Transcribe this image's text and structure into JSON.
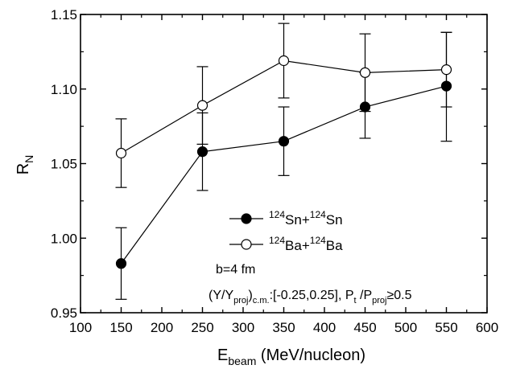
{
  "chart_data": {
    "type": "scatter",
    "xlabel": "E_beam (MeV/nucleon)",
    "xlabel_main": "E",
    "xlabel_sub": "beam",
    "xlabel_rest": " (MeV/nucleon)",
    "ylabel": "R_N",
    "ylabel_main": "R",
    "ylabel_sub": "N",
    "xlim": [
      100,
      600
    ],
    "ylim": [
      0.95,
      1.15
    ],
    "xticks": [
      100,
      150,
      200,
      250,
      300,
      350,
      400,
      450,
      500,
      550,
      600
    ],
    "xtick_labels": [
      "100",
      "150",
      "200",
      "250",
      "300",
      "350",
      "400",
      "450",
      "500",
      "550",
      "600"
    ],
    "yticks": [
      0.95,
      1.0,
      1.05,
      1.1,
      1.15
    ],
    "ytick_labels": [
      "0.95",
      "1.00",
      "1.05",
      "1.10",
      "1.15"
    ],
    "grid": false,
    "legend_position": "center-right",
    "series": [
      {
        "name": "124Sn+124Sn",
        "legend": {
          "sup1": "124",
          "t1": "Sn+",
          "sup2": "124",
          "t2": "Sn"
        },
        "marker": "filled-circle",
        "x": [
          150,
          250,
          350,
          450,
          550
        ],
        "y": [
          0.983,
          1.058,
          1.065,
          1.088,
          1.102
        ],
        "err_low": [
          0.959,
          1.032,
          1.042,
          1.067,
          1.065
        ],
        "err_high": [
          1.007,
          1.084,
          1.088,
          1.111,
          1.138
        ]
      },
      {
        "name": "124Ba+124Ba",
        "legend": {
          "sup1": "124",
          "t1": "Ba+",
          "sup2": "124",
          "t2": "Ba"
        },
        "marker": "open-circle",
        "x": [
          150,
          250,
          350,
          450,
          550
        ],
        "y": [
          1.057,
          1.089,
          1.119,
          1.111,
          1.113
        ],
        "err_low": [
          1.034,
          1.063,
          1.094,
          1.085,
          1.088
        ],
        "err_high": [
          1.08,
          1.115,
          1.144,
          1.137,
          1.138
        ]
      }
    ],
    "annotations": {
      "b": "b=4 fm",
      "cut": {
        "p1": "(Y/Y",
        "s1": "proj",
        "p2": ")",
        "s2": "c.m.",
        "p3": ":[-0.25,0.25], P",
        "s3": "t",
        "p4": " /P",
        "s4": "proj",
        "p5": "≥0.5"
      }
    }
  }
}
